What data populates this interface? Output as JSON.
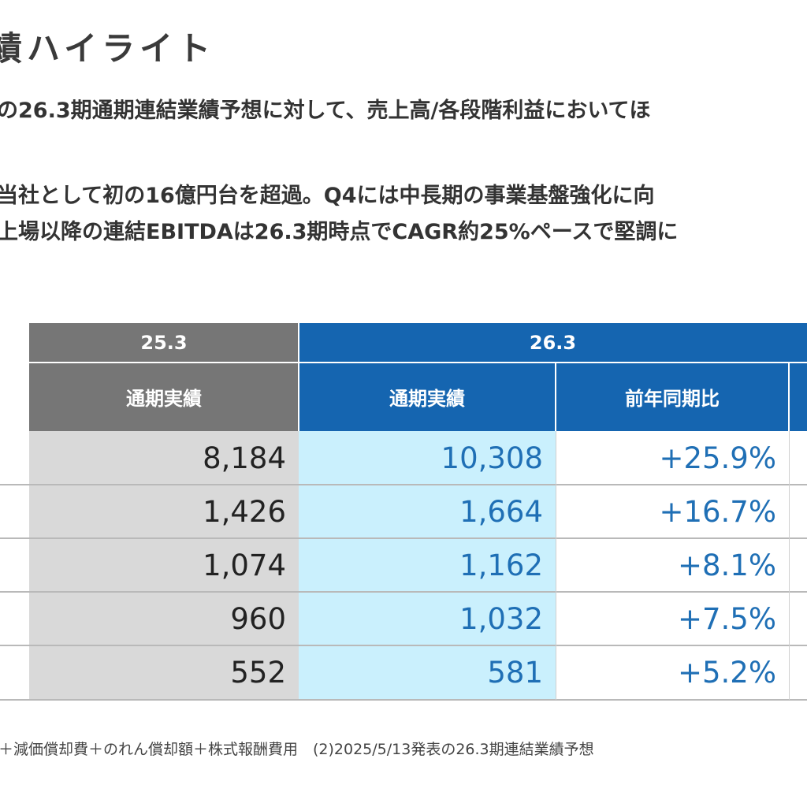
{
  "title": "績ハイライト",
  "lead": {
    "line1": "の26.3期通期連結業績予想に対して、売上高/各段階利益においてほ",
    "line2": "当社として初の16億円台を超過。Q4には中長期の事業基盤強化に向",
    "line3": "上場以降の連結EBITDAは26.3期時点でCAGR約25%ペースで堅調に"
  },
  "table": {
    "period_prev": "25.3",
    "period_cur": "26.3",
    "col_prev_actual": "通期実績",
    "col_cur_actual": "通期実績",
    "col_yoy": "前年同期比",
    "rows": [
      {
        "prev": "8,184",
        "cur": "10,308",
        "yoy": "+25.9%"
      },
      {
        "prev": "1,426",
        "cur": "1,664",
        "yoy": "+16.7%"
      },
      {
        "prev": "1,074",
        "cur": "1,162",
        "yoy": "+8.1%"
      },
      {
        "prev": "960",
        "cur": "1,032",
        "yoy": "+7.5%"
      },
      {
        "prev": "552",
        "cur": "581",
        "yoy": "+5.2%"
      }
    ]
  },
  "footnote": "＋減価償却費＋のれん償却額＋株式報酬費用　(2)2025/5/13発表の26.3期連結業績予想"
}
